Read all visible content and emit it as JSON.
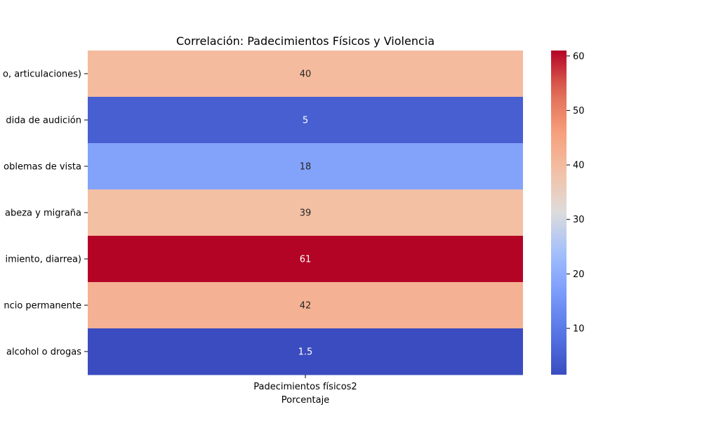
{
  "chart_data": {
    "type": "heatmap",
    "title": "Correlación: Padecimientos Físicos y Violencia",
    "xlabel": "Porcentaje",
    "ylabel": "",
    "x_categories": [
      "Padecimientos físicos2"
    ],
    "y_categories": [
      "o, articulaciones)",
      "dida de audición",
      "oblemas de vista",
      "abeza y migraña",
      "imiento, diarrea)",
      "ncio permanente",
      "alcohol o drogas"
    ],
    "values": [
      [
        40
      ],
      [
        5
      ],
      [
        18
      ],
      [
        39
      ],
      [
        61
      ],
      [
        42
      ],
      [
        1.5
      ]
    ],
    "value_labels": [
      "40",
      "5",
      "18",
      "39",
      "61",
      "42",
      "1.5"
    ],
    "colorbar": {
      "colormap": "coolwarm",
      "vmin": 1.5,
      "vmax": 61,
      "ticks": [
        10,
        20,
        30,
        40,
        50,
        60
      ]
    }
  }
}
